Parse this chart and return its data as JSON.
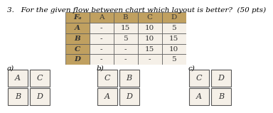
{
  "title": "3.   For the given flow between chart which layout is better?  (50 pts)",
  "table_headers": [
    "Fₐ",
    "A",
    "B",
    "C",
    "D"
  ],
  "table_rows": [
    [
      "A",
      "-",
      "15",
      "10",
      "5"
    ],
    [
      "B",
      "-",
      "5",
      "10",
      "15"
    ],
    [
      "C",
      "-",
      "-",
      "15",
      "10"
    ],
    [
      "D",
      "-",
      "-",
      "-",
      "5"
    ]
  ],
  "layout_a_label": "a)",
  "layout_b_label": "b)",
  "layout_c_label": "c)",
  "layout_a": [
    [
      "A",
      "C"
    ],
    [
      "B",
      "D"
    ]
  ],
  "layout_b": [
    [
      "C",
      "B"
    ],
    [
      "A",
      "D"
    ]
  ],
  "layout_c": [
    [
      "C",
      "D"
    ],
    [
      "A",
      "B"
    ]
  ],
  "bg_color": "#ffffff",
  "text_color": "#000000",
  "header_color": "#c0a060",
  "cell_color": "#c0a060",
  "grid_color": "#888888",
  "title_fontsize": 7.5,
  "label_fontsize": 7.5,
  "cell_fontsize": 7.5
}
